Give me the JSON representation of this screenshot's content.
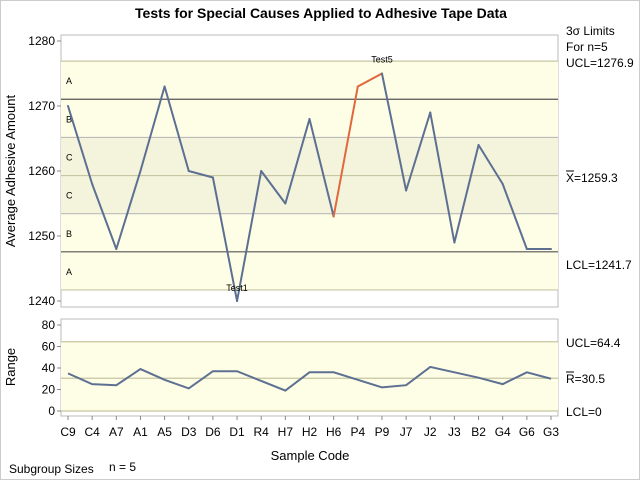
{
  "chart_data": [
    {
      "type": "line",
      "title": "Tests for Special Causes Applied to Adhesive Tape Data",
      "ylabel": "Average Adhesive Amount",
      "ylim": [
        1239,
        1281
      ],
      "yticks": [
        1240,
        1250,
        1260,
        1270,
        1280
      ],
      "categories": [
        "C9",
        "C4",
        "A7",
        "A1",
        "A5",
        "D3",
        "D6",
        "D1",
        "R4",
        "H7",
        "H2",
        "H6",
        "P4",
        "P9",
        "J7",
        "J2",
        "J3",
        "B2",
        "G4",
        "G6",
        "G3"
      ],
      "values": [
        1270,
        1258,
        1248,
        1260,
        1273,
        1260,
        1259,
        1240,
        1260,
        1255,
        1268,
        1253,
        1273,
        1275,
        1257,
        1269,
        1249,
        1264,
        1258,
        1248,
        1248
      ],
      "ucl": 1276.9,
      "center": 1259.3,
      "lcl": 1241.7,
      "zone_labels": [
        "A",
        "B",
        "C",
        "C",
        "B",
        "A"
      ],
      "limits_header": [
        "3σ Limits",
        "For n=5"
      ],
      "ucl_label": "UCL=1276.9",
      "center_label": "X=1259.3",
      "lcl_label": "LCL=1241.7",
      "annotations": [
        {
          "text": "Test1",
          "index": 7
        },
        {
          "text": "Test5",
          "index": 13,
          "highlight_segments": [
            11,
            12,
            13
          ]
        }
      ],
      "line_color": "#5d7092",
      "highlight_color": "#e0683c"
    },
    {
      "type": "line",
      "ylabel": "Range",
      "xlabel": "Sample Code",
      "ylim": [
        -3,
        83
      ],
      "yticks": [
        0,
        20,
        40,
        60,
        80
      ],
      "values": [
        35,
        25,
        24,
        39,
        29,
        21,
        37,
        37,
        28,
        19,
        36,
        36,
        29,
        22,
        24,
        41,
        36,
        31,
        25,
        36,
        30
      ],
      "ucl": 64.4,
      "center": 30.5,
      "lcl": 0,
      "ucl_label": "UCL=64.4",
      "center_label": "R=30.5",
      "lcl_label": "LCL=0"
    }
  ],
  "footer": {
    "label": "Subgroup Sizes",
    "value": "n = 5"
  }
}
